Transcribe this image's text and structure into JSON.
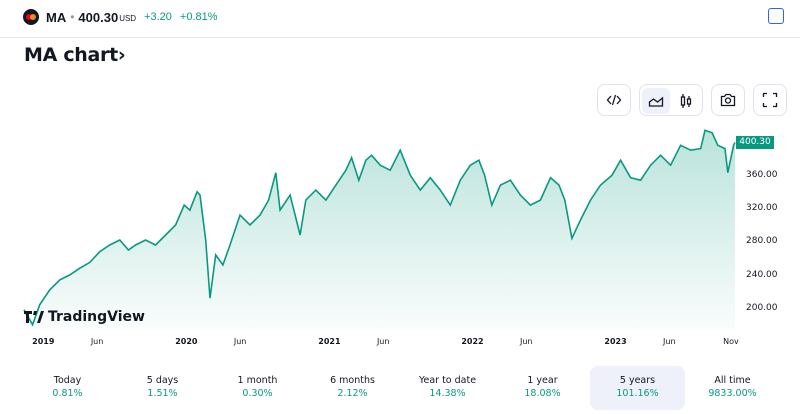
{
  "header": {
    "symbol": "MA",
    "separator": "•",
    "price": "400.30",
    "currency": "USD",
    "change": "+3.20",
    "change_pct": "+0.81%"
  },
  "title": "MA chart",
  "title_chevron": "›",
  "toolbar": {
    "icons": [
      "embed-code-icon",
      "area-chart-icon",
      "candles-icon",
      "camera-icon",
      "fullscreen-icon"
    ],
    "active": "area-chart-icon"
  },
  "colors": {
    "accent": "#089981",
    "line": "#089981",
    "selected_bg": "#eef1f9"
  },
  "branding": "TradingView",
  "chart_data": {
    "type": "area",
    "title": "MA chart",
    "x": [
      2018.88,
      2018.94,
      2018.99,
      2019.06,
      2019.13,
      2019.2,
      2019.27,
      2019.34,
      2019.41,
      2019.48,
      2019.55,
      2019.61,
      2019.66,
      2019.73,
      2019.8,
      2019.87,
      2019.94,
      2020.0,
      2020.04,
      2020.09,
      2020.11,
      2020.15,
      2020.18,
      2020.22,
      2020.27,
      2020.32,
      2020.39,
      2020.46,
      2020.53,
      2020.59,
      2020.64,
      2020.67,
      2020.74,
      2020.81,
      2020.85,
      2020.92,
      2020.99,
      2021.06,
      2021.13,
      2021.17,
      2021.22,
      2021.27,
      2021.31,
      2021.37,
      2021.44,
      2021.51,
      2021.58,
      2021.65,
      2021.72,
      2021.79,
      2021.86,
      2021.93,
      2022.0,
      2022.06,
      2022.1,
      2022.15,
      2022.21,
      2022.28,
      2022.35,
      2022.42,
      2022.49,
      2022.56,
      2022.62,
      2022.66,
      2022.71,
      2022.77,
      2022.84,
      2022.91,
      2022.99,
      2023.05,
      2023.12,
      2023.19,
      2023.26,
      2023.33,
      2023.4,
      2023.47,
      2023.54,
      2023.61,
      2023.64,
      2023.69,
      2023.73,
      2023.78,
      2023.8,
      2023.84,
      2023.85
    ],
    "values": [
      199,
      181,
      205,
      223,
      235,
      241,
      249,
      256,
      269,
      277,
      283,
      271,
      277,
      283,
      277,
      289,
      301,
      325,
      319,
      341,
      337,
      283,
      213,
      265,
      253,
      277,
      313,
      301,
      313,
      331,
      364,
      319,
      337,
      289,
      331,
      343,
      331,
      349,
      367,
      382,
      355,
      379,
      385,
      373,
      367,
      391,
      361,
      343,
      358,
      343,
      325,
      355,
      373,
      379,
      361,
      325,
      349,
      355,
      337,
      325,
      331,
      358,
      349,
      331,
      285,
      307,
      331,
      349,
      361,
      379,
      358,
      355,
      373,
      385,
      373,
      397,
      391,
      393,
      415,
      412,
      397,
      393,
      364,
      397,
      400.3
    ],
    "last_value_label": "400.30",
    "ylim": [
      180,
      430
    ],
    "xlim": [
      2018.88,
      2023.85
    ],
    "yticks": [
      "360.00",
      "320.00",
      "280.00",
      "240.00",
      "200.00"
    ],
    "ytick_values": [
      360,
      320,
      280,
      240,
      200
    ],
    "xticks": [
      {
        "label": "2019",
        "major": true,
        "x": 2019.0
      },
      {
        "label": "Jun",
        "major": false,
        "x": 2019.41
      },
      {
        "label": "2020",
        "major": true,
        "x": 2020.0
      },
      {
        "label": "Jun",
        "major": false,
        "x": 2020.41
      },
      {
        "label": "2021",
        "major": true,
        "x": 2021.0
      },
      {
        "label": "Jun",
        "major": false,
        "x": 2021.41
      },
      {
        "label": "2022",
        "major": true,
        "x": 2022.0
      },
      {
        "label": "Jun",
        "major": false,
        "x": 2022.41
      },
      {
        "label": "2023",
        "major": true,
        "x": 2023.0
      },
      {
        "label": "Jun",
        "major": false,
        "x": 2023.41
      },
      {
        "label": "Nov",
        "major": false,
        "x": 2023.83
      }
    ]
  },
  "periods": [
    {
      "label": "Today",
      "value": "0.81%"
    },
    {
      "label": "5 days",
      "value": "1.51%"
    },
    {
      "label": "1 month",
      "value": "0.30%"
    },
    {
      "label": "6 months",
      "value": "2.12%"
    },
    {
      "label": "Year to date",
      "value": "14.38%"
    },
    {
      "label": "1 year",
      "value": "18.08%"
    },
    {
      "label": "5 years",
      "value": "101.16%",
      "selected": true
    },
    {
      "label": "All time",
      "value": "9833.00%"
    }
  ]
}
